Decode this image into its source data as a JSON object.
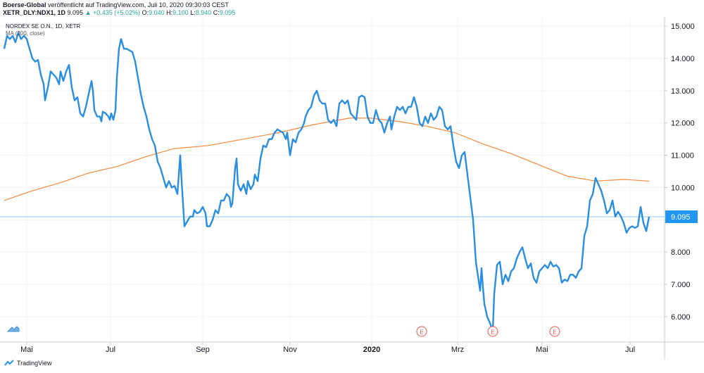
{
  "header": {
    "line1_publisher": "Boerse-Global",
    "line1_rest": "veröffentlicht auf TradingView.com, Juli 10, 2020 09:30:03 CEST",
    "symbol": "XETR_DLY:NDX1, 1D",
    "last": "9.095",
    "change": "▲ +0.435 (+5.02%)",
    "ohlc_o_label": "O:",
    "ohlc_o": "9.040",
    "ohlc_h_label": "H:",
    "ohlc_h": "9.100",
    "ohlc_l_label": "L:",
    "ohlc_l": "8.940",
    "ohlc_c_label": "C:",
    "ohlc_c": "9.095"
  },
  "legend": {
    "title": "NORDEX SE O.N., 1D, XETR",
    "indicator": "MA (200, close)"
  },
  "footer": {
    "brand": "TradingView"
  },
  "icons": {
    "earnings_marker": "E",
    "tv_logo": "tradingview-logo-icon",
    "settings": "chart-settings-icon"
  },
  "colors": {
    "price_line": "#2a8ee0",
    "ma_line": "#f5893c",
    "last_price_label": "#2196f3",
    "last_price_line": "#90c8f4",
    "earnings": "#ef5350"
  },
  "chart_data": {
    "type": "line",
    "ylim": [
      5.3,
      15.2
    ],
    "x_ticks": [
      "Mai",
      "Jul",
      "Sep",
      "Nov",
      "2020",
      "Mrz",
      "Mai",
      "Jul"
    ],
    "y_ticks": [
      "15.000",
      "14.000",
      "13.000",
      "12.000",
      "11.000",
      "10.000",
      "9.000",
      "8.000",
      "7.000",
      "6.000"
    ],
    "last_price_label": "9.095",
    "series": [
      {
        "name": "NORDEX SE O.N.",
        "color": "#2a8ee0",
        "points": [
          [
            0,
            14.3
          ],
          [
            4,
            14.7
          ],
          [
            8,
            14.6
          ],
          [
            12,
            14.7
          ],
          [
            16,
            14.5
          ],
          [
            20,
            14.8
          ],
          [
            24,
            14.6
          ],
          [
            28,
            14.7
          ],
          [
            32,
            14.6
          ],
          [
            36,
            14.3
          ],
          [
            40,
            14.0
          ],
          [
            44,
            13.9
          ],
          [
            48,
            13.95
          ],
          [
            52,
            13.5
          ],
          [
            56,
            13.2
          ],
          [
            58,
            12.7
          ],
          [
            62,
            13.1
          ],
          [
            66,
            13.6
          ],
          [
            70,
            13.5
          ],
          [
            74,
            13.4
          ],
          [
            78,
            13.2
          ],
          [
            80,
            13.6
          ],
          [
            84,
            13.3
          ],
          [
            88,
            13.6
          ],
          [
            92,
            13.8
          ],
          [
            96,
            13.1
          ],
          [
            100,
            12.7
          ],
          [
            104,
            12.8
          ],
          [
            108,
            12.3
          ],
          [
            112,
            12.2
          ],
          [
            116,
            12.5
          ],
          [
            120,
            12.9
          ],
          [
            124,
            13.3
          ],
          [
            126,
            13.0
          ],
          [
            128,
            12.4
          ],
          [
            132,
            12.2
          ],
          [
            136,
            12.2
          ],
          [
            138,
            12.05
          ],
          [
            140,
            12.35
          ],
          [
            144,
            12.3
          ],
          [
            148,
            12.2
          ],
          [
            150,
            12.1
          ],
          [
            152,
            12.3
          ],
          [
            155,
            12.1
          ],
          [
            158,
            12.4
          ],
          [
            160,
            13.4
          ],
          [
            163,
            14.3
          ],
          [
            166,
            14.6
          ],
          [
            170,
            14.3
          ],
          [
            174,
            14.3
          ],
          [
            178,
            14.25
          ],
          [
            182,
            14.2
          ],
          [
            186,
            13.9
          ],
          [
            190,
            13.4
          ],
          [
            194,
            12.9
          ],
          [
            198,
            12.5
          ],
          [
            202,
            12.2
          ],
          [
            206,
            11.8
          ],
          [
            210,
            11.5
          ],
          [
            214,
            11.3
          ],
          [
            218,
            10.8
          ],
          [
            222,
            10.6
          ],
          [
            226,
            10.3
          ],
          [
            230,
            10.0
          ],
          [
            234,
            10.2
          ],
          [
            238,
            10.0
          ],
          [
            242,
            10.05
          ],
          [
            246,
            9.8
          ],
          [
            250,
            11.0
          ],
          [
            252,
            10.2
          ],
          [
            254,
            9.5
          ],
          [
            256,
            8.8
          ],
          [
            260,
            8.95
          ],
          [
            264,
            9.1
          ],
          [
            268,
            9.1
          ],
          [
            270,
            9.3
          ],
          [
            274,
            9.2
          ],
          [
            278,
            9.25
          ],
          [
            282,
            9.4
          ],
          [
            286,
            9.2
          ],
          [
            288,
            8.8
          ],
          [
            292,
            8.8
          ],
          [
            296,
            9.0
          ],
          [
            300,
            9.3
          ],
          [
            304,
            9.2
          ],
          [
            308,
            9.6
          ],
          [
            312,
            9.6
          ],
          [
            316,
            9.8
          ],
          [
            320,
            9.7
          ],
          [
            322,
            9.4
          ],
          [
            324,
            9.5
          ],
          [
            328,
            10.6
          ],
          [
            330,
            10.9
          ],
          [
            332,
            10.1
          ],
          [
            336,
            9.9
          ],
          [
            340,
            10.1
          ],
          [
            344,
            9.8
          ],
          [
            346,
            10.2
          ],
          [
            350,
            9.95
          ],
          [
            354,
            10.1
          ],
          [
            356,
            10.4
          ],
          [
            360,
            10.2
          ],
          [
            364,
            10.9
          ],
          [
            368,
            11.3
          ],
          [
            372,
            11.25
          ],
          [
            376,
            11.5
          ],
          [
            380,
            11.5
          ],
          [
            384,
            11.7
          ],
          [
            388,
            11.8
          ],
          [
            392,
            11.75
          ],
          [
            396,
            11.7
          ],
          [
            400,
            11.5
          ],
          [
            402,
            11.7
          ],
          [
            406,
            11.0
          ],
          [
            410,
            11.5
          ],
          [
            414,
            11.4
          ],
          [
            418,
            11.7
          ],
          [
            422,
            11.8
          ],
          [
            426,
            12.0
          ],
          [
            428,
            12.2
          ],
          [
            432,
            12.4
          ],
          [
            436,
            12.5
          ],
          [
            440,
            12.85
          ],
          [
            444,
            13.0
          ],
          [
            448,
            12.7
          ],
          [
            452,
            12.6
          ],
          [
            456,
            12.6
          ],
          [
            460,
            12.1
          ],
          [
            464,
            12.0
          ],
          [
            468,
            12.1
          ],
          [
            472,
            11.9
          ],
          [
            476,
            12.6
          ],
          [
            480,
            12.7
          ],
          [
            484,
            12.6
          ],
          [
            488,
            12.7
          ],
          [
            492,
            12.3
          ],
          [
            496,
            12.2
          ],
          [
            500,
            12.1
          ],
          [
            504,
            12.8
          ],
          [
            508,
            12.85
          ],
          [
            512,
            12.8
          ],
          [
            516,
            12.2
          ],
          [
            520,
            12.0
          ],
          [
            524,
            12.0
          ],
          [
            528,
            12.4
          ],
          [
            532,
            12.1
          ],
          [
            536,
            12.0
          ],
          [
            540,
            11.7
          ],
          [
            544,
            12.0
          ],
          [
            548,
            12.2
          ],
          [
            550,
            11.8
          ],
          [
            554,
            12.2
          ],
          [
            558,
            12.5
          ],
          [
            562,
            12.4
          ],
          [
            566,
            12.5
          ],
          [
            570,
            12.3
          ],
          [
            574,
            12.5
          ],
          [
            578,
            12.5
          ],
          [
            582,
            12.8
          ],
          [
            586,
            12.5
          ],
          [
            590,
            12.0
          ],
          [
            594,
            11.9
          ],
          [
            598,
            12.2
          ],
          [
            602,
            12.0
          ],
          [
            606,
            12.3
          ],
          [
            610,
            12.1
          ],
          [
            614,
            12.2
          ],
          [
            618,
            12.5
          ],
          [
            622,
            12.4
          ],
          [
            626,
            11.9
          ],
          [
            630,
            11.8
          ],
          [
            634,
            11.9
          ],
          [
            638,
            11.3
          ],
          [
            642,
            10.8
          ],
          [
            646,
            10.6
          ],
          [
            650,
            11.0
          ],
          [
            654,
            11.1
          ],
          [
            658,
            10.4
          ],
          [
            662,
            9.7
          ],
          [
            666,
            9.0
          ],
          [
            670,
            7.7
          ],
          [
            672,
            7.4
          ],
          [
            676,
            6.8
          ],
          [
            678,
            7.5
          ],
          [
            680,
            6.9
          ],
          [
            682,
            6.4
          ],
          [
            686,
            6.0
          ],
          [
            690,
            5.8
          ],
          [
            694,
            5.55
          ],
          [
            696,
            6.7
          ],
          [
            700,
            7.6
          ],
          [
            704,
            7.7
          ],
          [
            708,
            7.0
          ],
          [
            712,
            7.3
          ],
          [
            716,
            7.1
          ],
          [
            720,
            7.4
          ],
          [
            724,
            7.5
          ],
          [
            728,
            7.8
          ],
          [
            732,
            8.0
          ],
          [
            736,
            8.15
          ],
          [
            740,
            7.8
          ],
          [
            744,
            7.5
          ],
          [
            748,
            7.65
          ],
          [
            752,
            7.2
          ],
          [
            756,
            7.05
          ],
          [
            760,
            7.4
          ],
          [
            764,
            7.5
          ],
          [
            768,
            7.6
          ],
          [
            772,
            7.5
          ],
          [
            776,
            7.7
          ],
          [
            780,
            7.55
          ],
          [
            784,
            7.6
          ],
          [
            788,
            7.5
          ],
          [
            792,
            7.05
          ],
          [
            796,
            7.15
          ],
          [
            800,
            7.1
          ],
          [
            804,
            7.3
          ],
          [
            808,
            7.3
          ],
          [
            812,
            7.2
          ],
          [
            816,
            7.4
          ],
          [
            820,
            7.5
          ],
          [
            824,
            8.5
          ],
          [
            828,
            8.8
          ],
          [
            832,
            9.6
          ],
          [
            836,
            9.8
          ],
          [
            840,
            10.3
          ],
          [
            844,
            10.1
          ],
          [
            848,
            9.9
          ],
          [
            852,
            9.6
          ],
          [
            856,
            9.2
          ],
          [
            860,
            9.3
          ],
          [
            864,
            9.6
          ],
          [
            868,
            9.1
          ],
          [
            872,
            9.25
          ],
          [
            876,
            9.1
          ],
          [
            880,
            8.9
          ],
          [
            884,
            8.6
          ],
          [
            888,
            8.75
          ],
          [
            892,
            8.8
          ],
          [
            896,
            8.75
          ],
          [
            900,
            8.8
          ],
          [
            904,
            9.4
          ],
          [
            908,
            8.9
          ],
          [
            912,
            8.65
          ],
          [
            916,
            9.095
          ]
        ]
      },
      {
        "name": "MA (200, close)",
        "color": "#f5893c",
        "points": [
          [
            0,
            9.6
          ],
          [
            40,
            9.9
          ],
          [
            80,
            10.15
          ],
          [
            120,
            10.45
          ],
          [
            160,
            10.65
          ],
          [
            200,
            10.95
          ],
          [
            240,
            11.2
          ],
          [
            290,
            11.3
          ],
          [
            340,
            11.5
          ],
          [
            390,
            11.7
          ],
          [
            440,
            11.95
          ],
          [
            490,
            12.15
          ],
          [
            520,
            12.15
          ],
          [
            560,
            12.05
          ],
          [
            600,
            11.9
          ],
          [
            640,
            11.7
          ],
          [
            680,
            11.35
          ],
          [
            720,
            11.05
          ],
          [
            760,
            10.7
          ],
          [
            800,
            10.35
          ],
          [
            840,
            10.2
          ],
          [
            880,
            10.25
          ],
          [
            916,
            10.2
          ]
        ]
      }
    ]
  }
}
